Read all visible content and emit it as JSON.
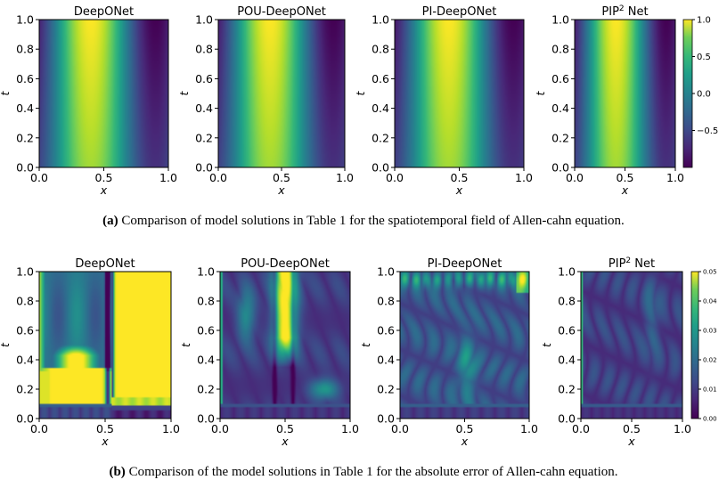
{
  "chart_data": [
    {
      "type": "heatmap",
      "row": "a",
      "title": "DeepONet",
      "xlabel": "x",
      "ylabel": "t",
      "xlim": [
        0.0,
        1.0
      ],
      "ylim": [
        0.0,
        1.0
      ],
      "xticks": [
        "0.0",
        "0.5",
        "1.0"
      ],
      "yticks": [
        "0.0",
        "0.2",
        "0.4",
        "0.6",
        "0.8",
        "1.0"
      ],
      "field": "solution",
      "value_range": [
        -1.0,
        1.0
      ]
    },
    {
      "type": "heatmap",
      "row": "a",
      "title": "POU-DeepONet",
      "xlabel": "x",
      "ylabel": "t",
      "xlim": [
        0.0,
        1.0
      ],
      "ylim": [
        0.0,
        1.0
      ],
      "xticks": [
        "0.0",
        "0.5",
        "1.0"
      ],
      "yticks": [
        "0.0",
        "0.2",
        "0.4",
        "0.6",
        "0.8",
        "1.0"
      ],
      "field": "solution",
      "value_range": [
        -1.0,
        1.0
      ]
    },
    {
      "type": "heatmap",
      "row": "a",
      "title": "PI-DeepONet",
      "xlabel": "x",
      "ylabel": "t",
      "xlim": [
        0.0,
        1.0
      ],
      "ylim": [
        0.0,
        1.0
      ],
      "xticks": [
        "0.0",
        "0.5",
        "1.0"
      ],
      "yticks": [
        "0.0",
        "0.2",
        "0.4",
        "0.6",
        "0.8",
        "1.0"
      ],
      "field": "solution",
      "value_range": [
        -1.0,
        1.0
      ]
    },
    {
      "type": "heatmap",
      "row": "a",
      "title": "PIP",
      "title_sup": "2",
      "title_tail": " Net",
      "xlabel": "x",
      "ylabel": "t",
      "xlim": [
        0.0,
        1.0
      ],
      "ylim": [
        0.0,
        1.0
      ],
      "xticks": [
        "0.0",
        "0.5",
        "1.0"
      ],
      "yticks": [
        "0.0",
        "0.2",
        "0.4",
        "0.6",
        "0.8",
        "1.0"
      ],
      "field": "solution",
      "value_range": [
        -1.0,
        1.0
      ],
      "colorbar_ticks": [
        "1.0",
        "0.5",
        "0.0",
        "−0.5"
      ],
      "colorbar_values": [
        1.0,
        0.5,
        0.0,
        -0.5
      ]
    },
    {
      "type": "heatmap",
      "row": "b",
      "title": "DeepONet",
      "xlabel": "x",
      "ylabel": "t",
      "xlim": [
        0.0,
        1.0
      ],
      "ylim": [
        0.0,
        1.0
      ],
      "xticks": [
        "0.0",
        "0.5",
        "1.0"
      ],
      "yticks": [
        "0.0",
        "0.2",
        "0.4",
        "0.6",
        "0.8",
        "1.0"
      ],
      "field": "error",
      "value_range": [
        0.0,
        0.05
      ]
    },
    {
      "type": "heatmap",
      "row": "b",
      "title": "POU-DeepONet",
      "xlabel": "x",
      "ylabel": "t",
      "xlim": [
        0.0,
        1.0
      ],
      "ylim": [
        0.0,
        1.0
      ],
      "xticks": [
        "0.0",
        "0.5",
        "1.0"
      ],
      "yticks": [
        "0.0",
        "0.2",
        "0.4",
        "0.6",
        "0.8",
        "1.0"
      ],
      "field": "error",
      "value_range": [
        0.0,
        0.05
      ]
    },
    {
      "type": "heatmap",
      "row": "b",
      "title": "PI-DeepONet",
      "xlabel": "x",
      "ylabel": "t",
      "xlim": [
        0.0,
        1.0
      ],
      "ylim": [
        0.0,
        1.0
      ],
      "xticks": [
        "0.0",
        "0.5",
        "1.0"
      ],
      "yticks": [
        "0.0",
        "0.2",
        "0.4",
        "0.6",
        "0.8",
        "1.0"
      ],
      "field": "error",
      "value_range": [
        0.0,
        0.05
      ]
    },
    {
      "type": "heatmap",
      "row": "b",
      "title": "PIP",
      "title_sup": "2",
      "title_tail": " Net",
      "xlabel": "x",
      "ylabel": "t",
      "xlim": [
        0.0,
        1.0
      ],
      "ylim": [
        0.0,
        1.0
      ],
      "xticks": [
        "0.0",
        "0.5",
        "1.0"
      ],
      "yticks": [
        "0.0",
        "0.2",
        "0.4",
        "0.6",
        "0.8",
        "1.0"
      ],
      "field": "error",
      "value_range": [
        0.0,
        0.05
      ],
      "colorbar_ticks": [
        "0.05",
        "0.04",
        "0.03",
        "0.02",
        "0.01",
        "0.00"
      ],
      "colorbar_values": [
        0.05,
        0.04,
        0.03,
        0.02,
        0.01,
        0.0
      ]
    }
  ],
  "captions": {
    "a_label": "(a)",
    "a_text": " Comparison of model solutions in Table 1 for the spatiotemporal field of Allen-cahn equation.",
    "b_label": "(b)",
    "b_text": " Comparison of the model solutions in Table 1 for the absolute error of Allen-cahn equation."
  },
  "colors": {
    "viridis_dark": "#440154",
    "viridis_mid": "#21918c",
    "viridis_bright": "#fde725"
  }
}
